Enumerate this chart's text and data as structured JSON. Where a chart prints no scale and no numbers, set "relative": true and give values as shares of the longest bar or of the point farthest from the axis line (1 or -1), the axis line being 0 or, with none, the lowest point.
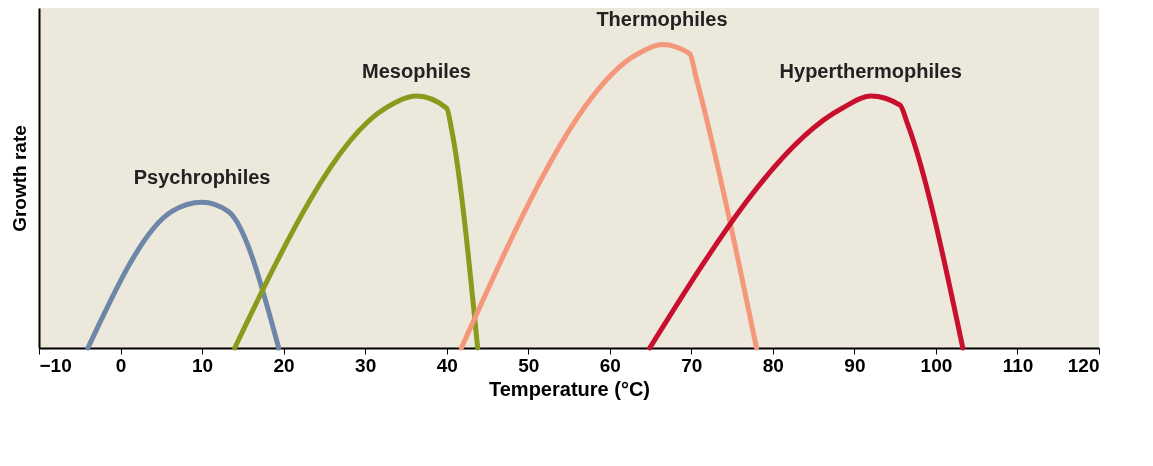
{
  "chart_data": {
    "type": "line",
    "relative": true,
    "xlabel": "Temperature (°C)",
    "ylabel": "Growth rate",
    "xlim": [
      -10,
      120
    ],
    "xticks": [
      -10,
      0,
      10,
      20,
      30,
      40,
      50,
      60,
      70,
      80,
      90,
      100,
      110,
      120
    ],
    "grid": false,
    "legend": false,
    "series": [
      {
        "name": "Psychrophiles",
        "color": "#6e87a8",
        "x": [
          -4,
          6.3,
          10,
          13.2,
          19.4
        ],
        "values": [
          0,
          0.45,
          0.48,
          0.45,
          0
        ]
      },
      {
        "name": "Mesophiles",
        "color": "#8a9a1c",
        "x": [
          14,
          32.5,
          36.3,
          40,
          40.6,
          43.8
        ],
        "values": [
          0,
          0.79,
          0.83,
          0.79,
          0.72,
          0
        ]
      },
      {
        "name": "Thermophiles",
        "color": "#f4977a",
        "x": [
          41.8,
          63.5,
          66.4,
          69.8,
          70.6,
          78
        ],
        "values": [
          0,
          0.97,
          1,
          0.97,
          0.89,
          0
        ]
      },
      {
        "name": "Hyperthermophiles",
        "color": "#c8102e",
        "x": [
          64.9,
          88.5,
          92,
          95.6,
          96.5,
          103.3
        ],
        "values": [
          0,
          0.79,
          0.83,
          0.8,
          0.74,
          0
        ]
      }
    ]
  }
}
